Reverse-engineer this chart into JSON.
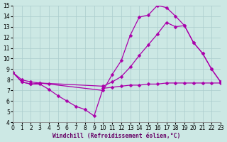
{
  "bg_color": "#cce8e4",
  "grid_color": "#aacccc",
  "line_color": "#aa00aa",
  "markersize": 2.5,
  "linewidth": 0.9,
  "xlabel": "Windchill (Refroidissement éolien,°C)",
  "xlabel_fontsize": 5.8,
  "tick_fontsize": 5.5,
  "xlim": [
    0,
    23
  ],
  "ylim": [
    4,
    15
  ],
  "xticks": [
    0,
    1,
    2,
    3,
    4,
    5,
    6,
    7,
    8,
    9,
    10,
    11,
    12,
    13,
    14,
    15,
    16,
    17,
    18,
    19,
    20,
    21,
    22,
    23
  ],
  "yticks": [
    4,
    5,
    6,
    7,
    8,
    9,
    10,
    11,
    12,
    13,
    14,
    15
  ],
  "curves": [
    {
      "x": [
        0,
        1,
        2,
        3,
        4,
        10,
        11,
        12,
        13,
        14,
        15,
        16,
        17,
        18,
        19,
        20,
        21,
        22,
        23
      ],
      "y": [
        8.7,
        8.0,
        7.8,
        7.7,
        7.6,
        7.0,
        8.5,
        9.8,
        12.2,
        13.9,
        14.1,
        15.0,
        14.8,
        14.0,
        13.1,
        11.5,
        10.5,
        9.0,
        7.8
      ]
    },
    {
      "x": [
        0,
        1,
        2,
        3,
        10,
        11,
        12,
        13,
        14,
        15,
        16,
        17,
        18,
        19,
        20,
        21,
        22,
        23
      ],
      "y": [
        8.7,
        7.8,
        7.6,
        7.7,
        7.4,
        7.8,
        8.3,
        9.2,
        10.3,
        11.3,
        12.3,
        13.4,
        13.0,
        13.1,
        11.5,
        10.5,
        9.0,
        7.8
      ]
    },
    {
      "x": [
        0,
        1,
        2,
        3,
        4,
        5,
        6,
        7,
        8,
        9,
        10,
        11,
        12,
        13,
        14,
        15,
        16,
        17,
        18,
        19,
        20,
        21,
        22,
        23
      ],
      "y": [
        8.7,
        7.8,
        7.6,
        7.6,
        7.1,
        6.5,
        6.0,
        5.5,
        5.2,
        4.6,
        7.2,
        7.3,
        7.4,
        7.5,
        7.5,
        7.6,
        7.6,
        7.7,
        7.7,
        7.7,
        7.7,
        7.7,
        7.7,
        7.7
      ]
    }
  ]
}
